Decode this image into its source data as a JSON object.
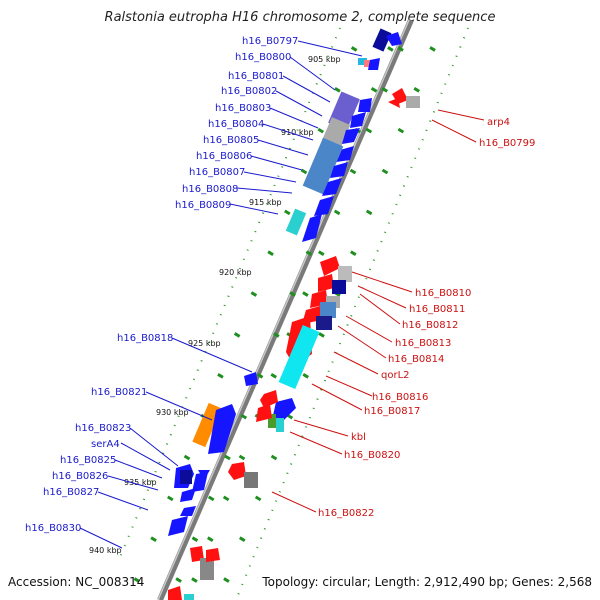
{
  "title": "Ralstonia eutropha H16 chromosome 2, complete sequence",
  "accession": "Accession: NC_008314",
  "topology": "Topology: circular; Length: 2,912,490 bp; Genes: 2,568",
  "colors": {
    "forward": "#1515ff",
    "reverse": "#ff1111",
    "backbone": "#888888",
    "tick": "#228b22",
    "blue_label": "#1a1acc",
    "red_label": "#cc1111"
  },
  "kbp_labels": [
    "905 kbp",
    "910 kbp",
    "915 kbp",
    "920 kbp",
    "925 kbp",
    "930 kbp",
    "935 kbp",
    "940 kbp"
  ],
  "left_genes": [
    "h16_B0797",
    "h16_B0800",
    "h16_B0801",
    "h16_B0802",
    "h16_B0803",
    "h16_B0804",
    "h16_B0805",
    "h16_B0806",
    "h16_B0807",
    "h16_B0808",
    "h16_B0809",
    "h16_B0818",
    "h16_B0821",
    "h16_B0823",
    "serA4",
    "h16_B0825",
    "h16_B0826",
    "h16_B0827",
    "h16_B0830"
  ],
  "right_genes": [
    "arp4",
    "h16_B0799",
    "h16_B0810",
    "h16_B0811",
    "h16_B0812",
    "h16_B0813",
    "h16_B0814",
    "qorL2",
    "h16_B0816",
    "h16_B0817",
    "kbl",
    "h16_B0820",
    "h16_B0822"
  ]
}
